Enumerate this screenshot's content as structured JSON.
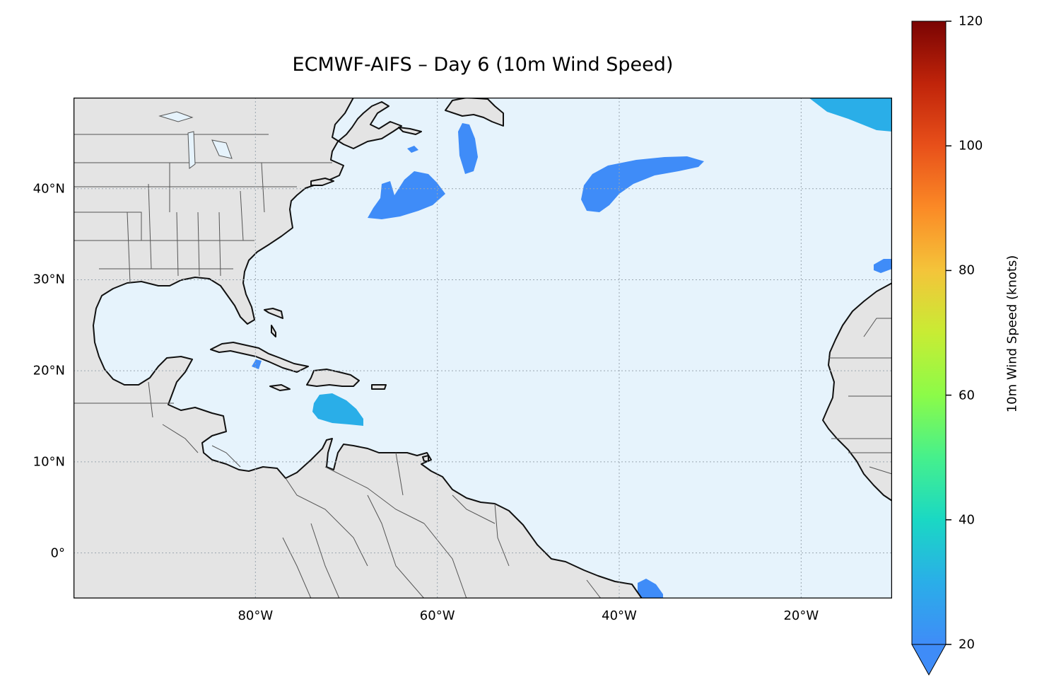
{
  "title": "ECMWF-AIFS – Day 6 (10m Wind Speed)",
  "colors": {
    "ocean": "#e6f3fc",
    "land": "#e4e4e4",
    "coast": "#111111",
    "border": "#555555",
    "grid": "#9aa6b0",
    "wind_low": "#3f8cf8",
    "wind_mid": "#2aaee8"
  },
  "map": {
    "projection": "PlateCarree",
    "lon_range": [
      -100,
      -10
    ],
    "lat_range": [
      -5,
      50
    ],
    "lat_ticks": [
      {
        "value": 40,
        "label": "40°N"
      },
      {
        "value": 30,
        "label": "30°N"
      },
      {
        "value": 20,
        "label": "20°N"
      },
      {
        "value": 10,
        "label": "10°N"
      },
      {
        "value": 0,
        "label": "0°"
      }
    ],
    "lon_ticks": [
      {
        "value": -80,
        "label": "80°W"
      },
      {
        "value": -60,
        "label": "60°W"
      },
      {
        "value": -40,
        "label": "40°W"
      },
      {
        "value": -20,
        "label": "20°W"
      }
    ],
    "gridlines": true
  },
  "colorbar": {
    "label": "10m Wind Speed (knots)",
    "range": [
      20,
      120
    ],
    "ticks": [
      {
        "value": 20,
        "label": "20"
      },
      {
        "value": 40,
        "label": "40"
      },
      {
        "value": 60,
        "label": "60"
      },
      {
        "value": 80,
        "label": "80"
      },
      {
        "value": 100,
        "label": "100"
      },
      {
        "value": 120,
        "label": "120"
      }
    ],
    "extend": "min",
    "colormap": "turbo",
    "stops": [
      {
        "v": 0.0,
        "c": "#3f8cf8"
      },
      {
        "v": 0.1,
        "c": "#2aaee8"
      },
      {
        "v": 0.2,
        "c": "#1ad8c4"
      },
      {
        "v": 0.3,
        "c": "#46f08c"
      },
      {
        "v": 0.4,
        "c": "#8cfb48"
      },
      {
        "v": 0.5,
        "c": "#c8ec34"
      },
      {
        "v": 0.6,
        "c": "#f4c43a"
      },
      {
        "v": 0.7,
        "c": "#fb8a26"
      },
      {
        "v": 0.8,
        "c": "#e8501a"
      },
      {
        "v": 0.9,
        "c": "#c0240a"
      },
      {
        "v": 1.0,
        "c": "#7a0403"
      }
    ]
  }
}
